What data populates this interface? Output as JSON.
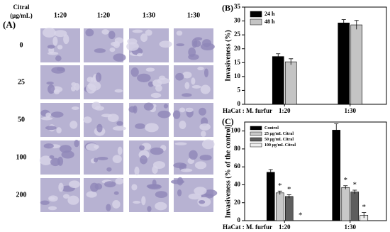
{
  "panel_a": {
    "label": "(A)",
    "row_header": [
      "Citral",
      "(μg/mL)"
    ],
    "columns": [
      "1:20",
      "1:20",
      "1:30",
      "1:30"
    ],
    "rows": [
      "0",
      "25",
      "50",
      "100",
      "200"
    ]
  },
  "chart_data": [
    {
      "type": "bar",
      "panel": "(B)",
      "ylabel": "Invasiveness (%)",
      "xlabel": "HaCat : M. furfur",
      "categories": [
        "1:20",
        "1:30"
      ],
      "series": [
        {
          "name": "24 h",
          "color": "#000000",
          "values": [
            17.2,
            29.3
          ],
          "errors": [
            1.0,
            1.2
          ]
        },
        {
          "name": "48 h",
          "color": "#c4c4c4",
          "values": [
            15.3,
            28.6
          ],
          "errors": [
            1.1,
            1.6
          ]
        }
      ],
      "ylim": [
        0,
        35
      ],
      "yticks": [
        0,
        5,
        10,
        15,
        20,
        25,
        30,
        35
      ],
      "legend": "upper left"
    },
    {
      "type": "bar",
      "panel": "(C)",
      "ylabel": "Invasiveness (% of the control)",
      "xlabel": "HaCat : M. furfur",
      "categories": [
        "1:20",
        "1:30"
      ],
      "series": [
        {
          "name": "Control",
          "color": "#000000",
          "values": [
            54,
            101
          ],
          "errors": [
            3,
            7
          ]
        },
        {
          "name": "25 μg/mL Citral",
          "color": "#c8c8c8",
          "values": [
            31,
            37
          ],
          "errors": [
            2,
            2
          ],
          "significance": [
            "*",
            "*"
          ]
        },
        {
          "name": "50 μg/mL Citral",
          "color": "#5e5e5e",
          "values": [
            27,
            32
          ],
          "errors": [
            2,
            2
          ],
          "significance": [
            "*",
            "*"
          ]
        },
        {
          "name": "100 μg/mL Citral",
          "color": "#eeeeee",
          "values": [
            0,
            6
          ],
          "errors": [
            0,
            3
          ],
          "significance": [
            "*",
            "*"
          ]
        }
      ],
      "ylim": [
        0,
        110
      ],
      "yticks": [
        0,
        20,
        40,
        60,
        80,
        100
      ],
      "legend": "upper left"
    }
  ]
}
